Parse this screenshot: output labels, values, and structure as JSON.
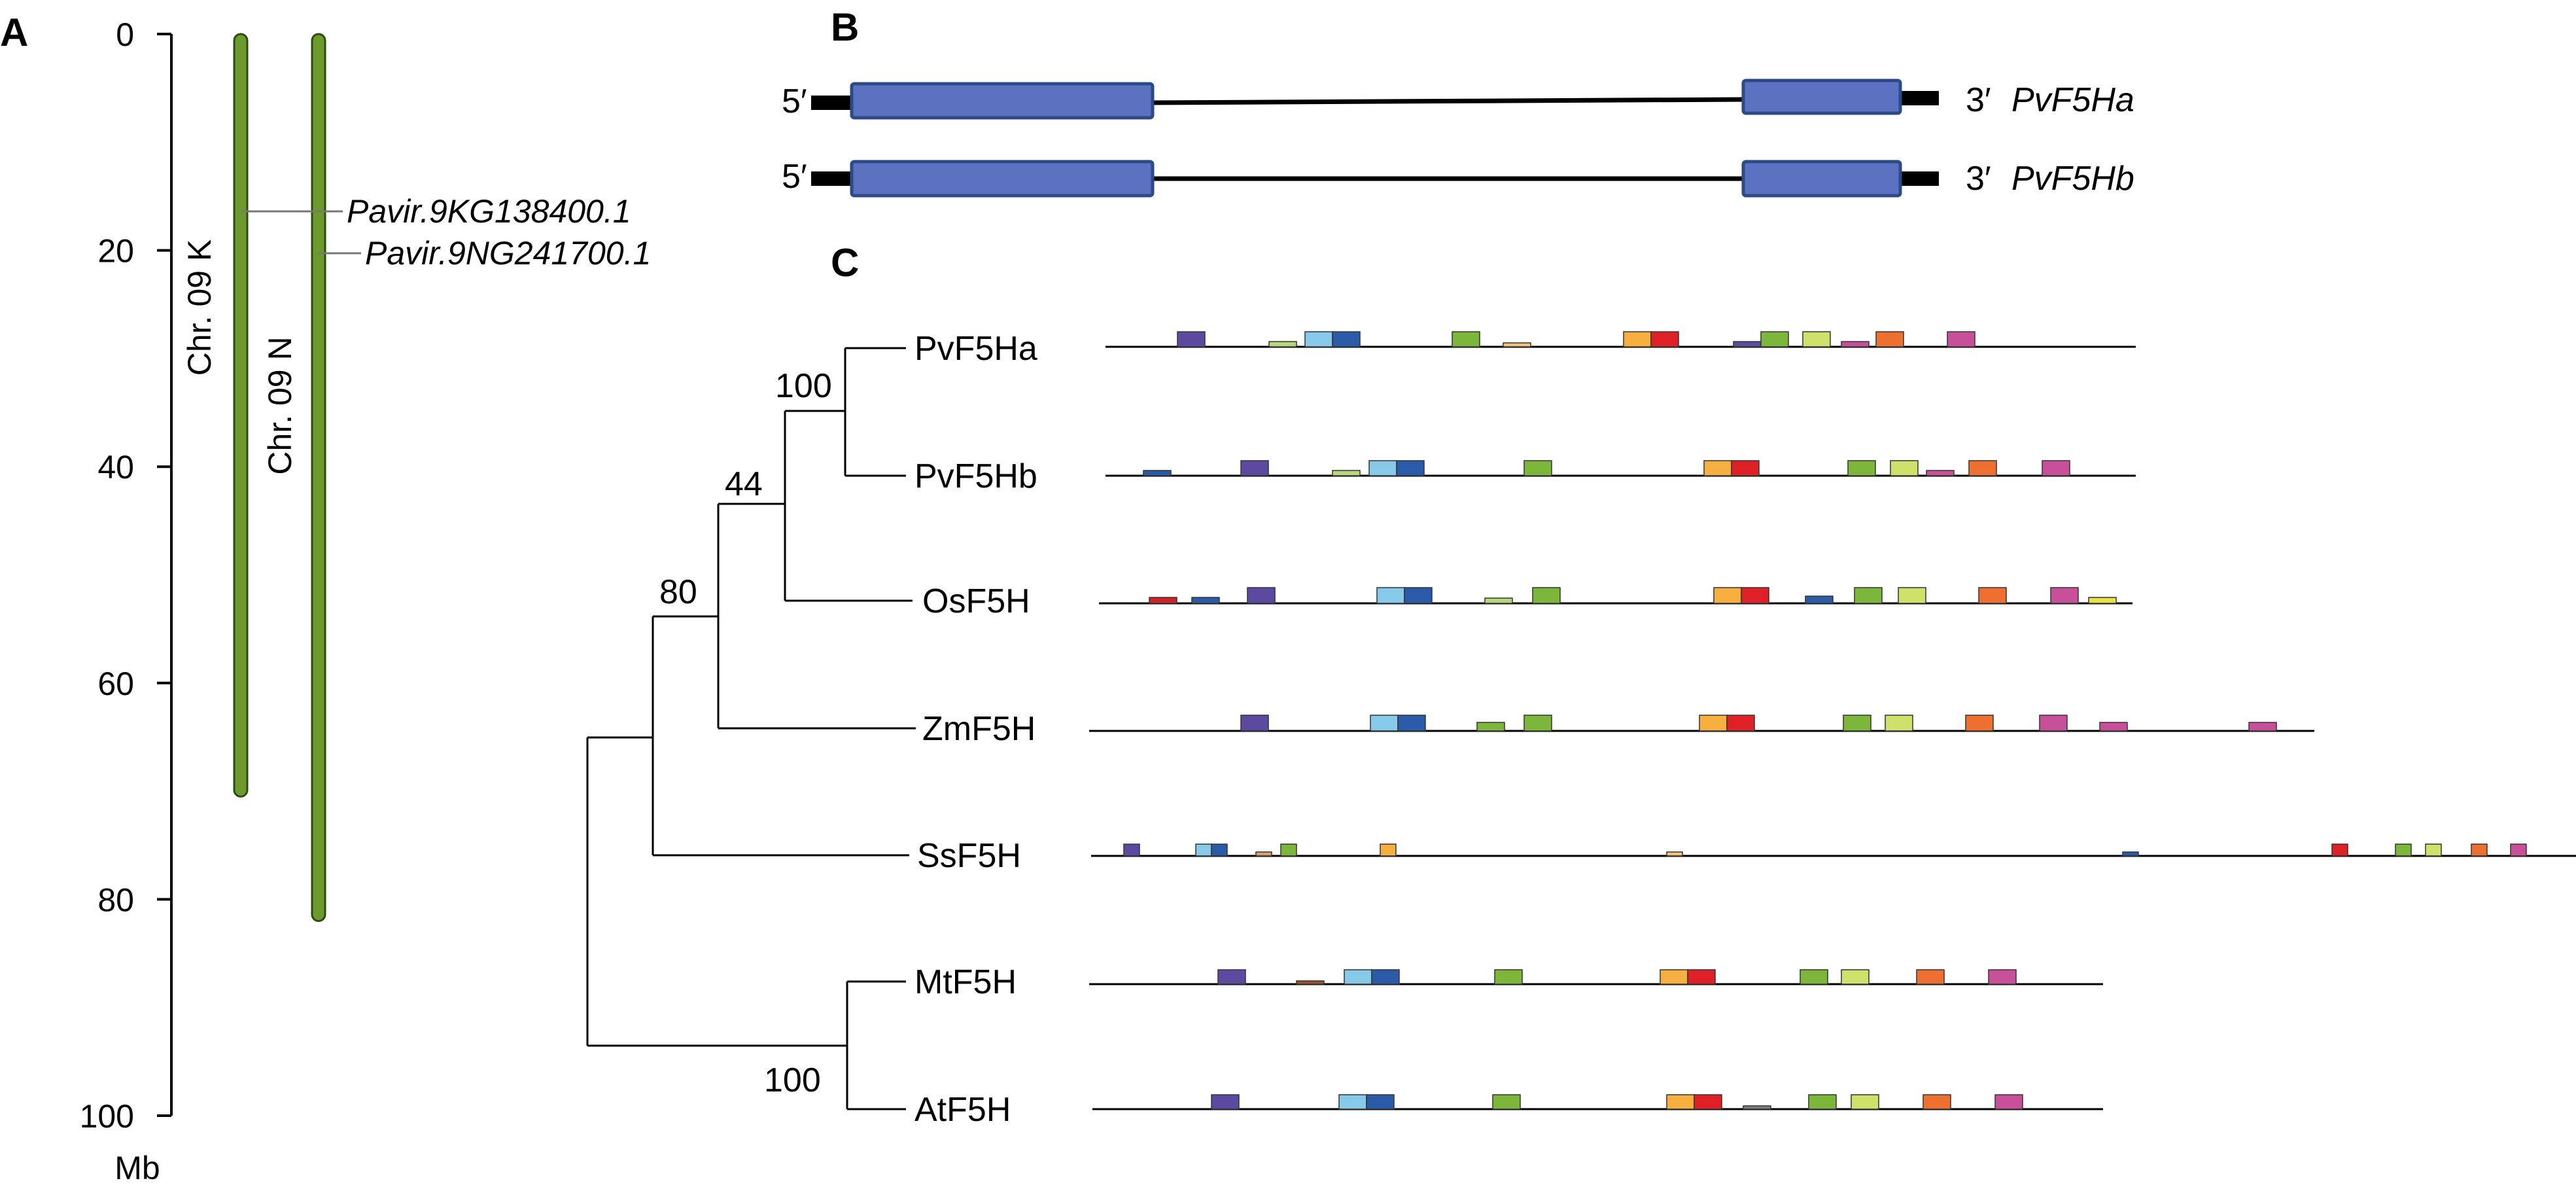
{
  "panels": {
    "a": "A",
    "b": "B",
    "c": "C"
  },
  "panel_a": {
    "axis_unit": "Mb",
    "ticks": [
      0,
      20,
      40,
      60,
      80,
      100
    ],
    "chromosomes": [
      {
        "label": "Chr. 09 K",
        "length": 70.5,
        "color": "#6c9a2c"
      },
      {
        "label": "Chr. 09 N",
        "length": 82,
        "color": "#6c9a2c"
      }
    ],
    "genes": [
      {
        "name": "Pavir.9KG138400.1",
        "chromosome": 0,
        "position": 16.5
      },
      {
        "name": "Pavir.9NG241700.1",
        "chromosome": 1,
        "position": 20.3
      }
    ]
  },
  "panel_b": {
    "five_prime": "5′",
    "three_prime": "3′",
    "exon_color": "#5b72c0",
    "genes": [
      {
        "name": "PvF5Ha"
      },
      {
        "name": "PvF5Hb"
      }
    ]
  },
  "panel_c": {
    "taxa": [
      "PvF5Ha",
      "PvF5Hb",
      "OsF5H",
      "ZmF5H",
      "SsF5H",
      "MtF5H",
      "AtF5H"
    ],
    "bootstrap": [
      "100",
      "44",
      "80",
      "100"
    ],
    "colors": {
      "purple": "#5c4aa0",
      "lightblue": "#87c9e8",
      "blue": "#2b5aa8",
      "green": "#7cb63a",
      "lightgreen": "#b6d77a",
      "yellowgreen": "#cfe16a",
      "peach": "#f2c27a",
      "orange": "#f7b040",
      "red": "#e02027",
      "darkorange": "#ee7030",
      "magenta": "#c84f9a",
      "tan": "#d8a070",
      "darkred": "#d2232a",
      "gray": "#7f7f7f"
    }
  }
}
